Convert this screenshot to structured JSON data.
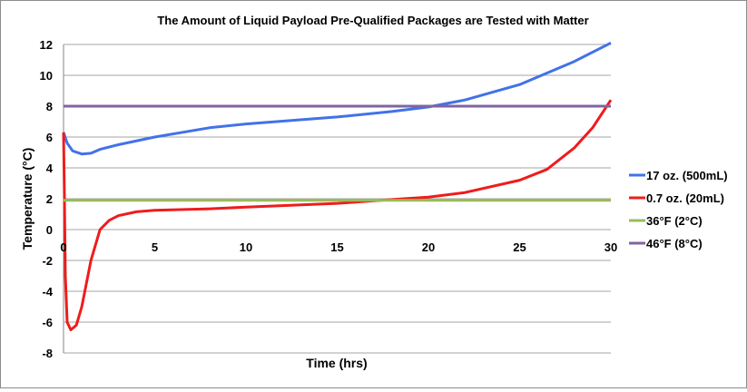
{
  "chart_data": {
    "type": "line",
    "title": "The Amount of Liquid Payload Pre-Qualified Packages are Tested with Matter",
    "xlabel": "Time (hrs)",
    "ylabel": "Temperature (°C)",
    "xlim": [
      0,
      30
    ],
    "ylim": [
      -8,
      12
    ],
    "xticks": [
      "0",
      "5",
      "10",
      "15",
      "20",
      "25",
      "30"
    ],
    "yticks": [
      "-8",
      "-6",
      "-4",
      "-2",
      "0",
      "2",
      "4",
      "6",
      "8",
      "10",
      "12"
    ],
    "grid": true,
    "legend_position": "right",
    "series": [
      {
        "name": "17 oz. (500mL)",
        "color": "#4272e8",
        "x": [
          0,
          0.2,
          0.5,
          1,
          1.5,
          2,
          3,
          5,
          8,
          10,
          15,
          18,
          20,
          22,
          25,
          28,
          30
        ],
        "y": [
          6.3,
          5.6,
          5.1,
          4.9,
          4.95,
          5.2,
          5.5,
          6.0,
          6.6,
          6.85,
          7.3,
          7.65,
          7.95,
          8.4,
          9.4,
          10.9,
          12.1
        ]
      },
      {
        "name": "0.7 oz. (20mL)",
        "color": "#ee1c1c",
        "x": [
          0,
          0.05,
          0.1,
          0.2,
          0.4,
          0.7,
          1,
          1.5,
          2,
          2.5,
          3,
          4,
          5,
          8,
          10,
          15,
          18,
          20,
          22,
          25,
          26.5,
          28,
          29,
          30
        ],
        "y": [
          6.3,
          2,
          -3,
          -6,
          -6.5,
          -6.2,
          -5,
          -2,
          0,
          0.6,
          0.9,
          1.15,
          1.25,
          1.35,
          1.45,
          1.7,
          1.95,
          2.1,
          2.4,
          3.2,
          3.9,
          5.3,
          6.6,
          8.4
        ]
      },
      {
        "name": "36°F (2°C)",
        "color": "#9bbb59",
        "x": [
          0,
          30
        ],
        "y": [
          1.9,
          1.9
        ]
      },
      {
        "name": "46°F (8°C)",
        "color": "#7f64a2",
        "x": [
          0,
          30
        ],
        "y": [
          8,
          8
        ]
      }
    ]
  }
}
